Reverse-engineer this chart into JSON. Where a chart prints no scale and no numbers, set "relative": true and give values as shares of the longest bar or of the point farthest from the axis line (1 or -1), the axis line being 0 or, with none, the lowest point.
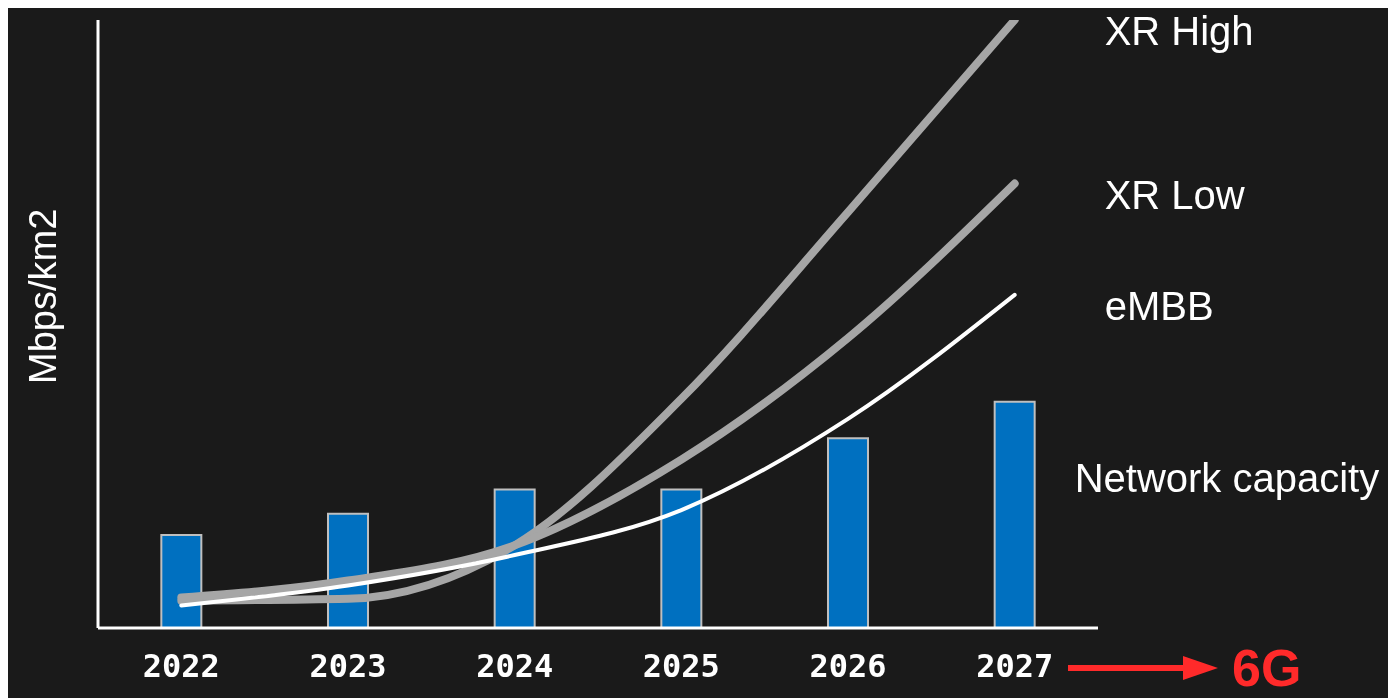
{
  "chart_data": {
    "type": "bar",
    "relative": true,
    "ylabel": "Mbps/km2",
    "categories": [
      "2022",
      "2023",
      "2024",
      "2025",
      "2026",
      "2027"
    ],
    "series": [
      {
        "name": "Network capacity",
        "color": "#0070c0",
        "values": [
          0.153,
          0.188,
          0.228,
          0.228,
          0.312,
          0.372
        ]
      },
      {
        "name": "XR High",
        "type": "line",
        "color": "#a6a6a6",
        "values": [
          0.045,
          0.048,
          0.136,
          0.377,
          0.684,
          1.0
        ]
      },
      {
        "name": "XR Low",
        "type": "line",
        "color": "#a6a6a6",
        "values": [
          0.05,
          0.078,
          0.136,
          0.277,
          0.477,
          0.731
        ]
      },
      {
        "name": "eMBB",
        "type": "line",
        "color": "#ffffff",
        "values": [
          0.037,
          0.07,
          0.12,
          0.194,
          0.344,
          0.548
        ]
      }
    ],
    "marker": "none",
    "line_style": "solid",
    "grid": false,
    "annotations": [
      "6G"
    ]
  }
}
